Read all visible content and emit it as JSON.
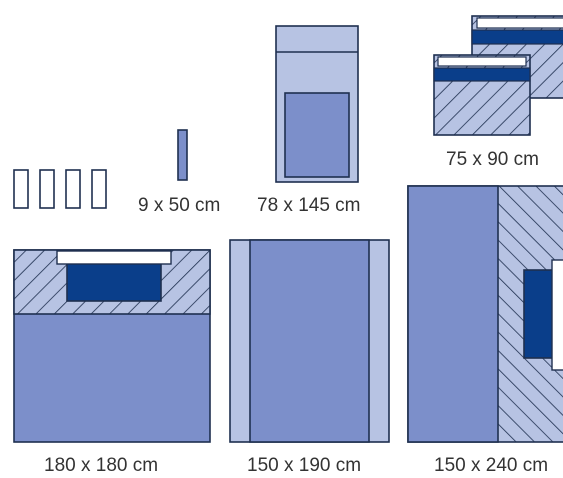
{
  "colors": {
    "light": "#b7c3e3",
    "mid": "#7c8fca",
    "dark": "#0a3e8a",
    "stroke": "#1e2f4f",
    "hatch": "#1e2f4f",
    "text": "#333333"
  },
  "drapes": [
    {
      "id": "small-set",
      "label": ""
    },
    {
      "id": "strip",
      "label": "9 x 50 cm"
    },
    {
      "id": "drape-78x145",
      "label": "78 x 145 cm"
    },
    {
      "id": "drape-75x90",
      "label": "75 x 90 cm"
    },
    {
      "id": "drape-180x180",
      "label": "180 x 180 cm"
    },
    {
      "id": "drape-150x190",
      "label": "150 x 190 cm"
    },
    {
      "id": "drape-150x240",
      "label": "150 x 240 cm"
    }
  ]
}
